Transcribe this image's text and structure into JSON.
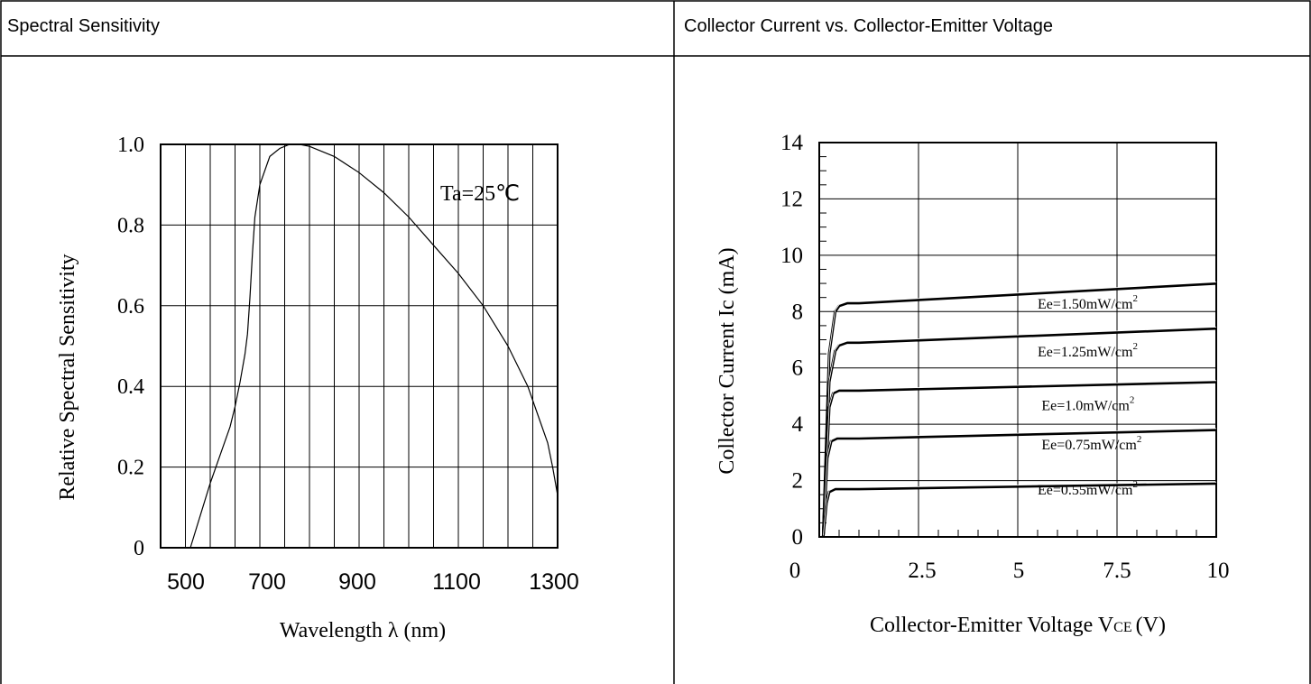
{
  "panels": [
    {
      "title": "Spectral Sensitivity"
    },
    {
      "title": "Collector Current vs. Collector-Emitter Voltage"
    }
  ],
  "chart_data": [
    {
      "type": "line",
      "title": "Spectral Sensitivity",
      "xlabel": "Wavelength λ (nm)",
      "ylabel": "Relative Spectral Sensitivity",
      "xlim": [
        500,
        1300
      ],
      "ylim": [
        0,
        1.0
      ],
      "xticks": [
        500,
        700,
        900,
        1100,
        1300
      ],
      "xtick_labels": [
        "500",
        "700",
        "900",
        "1100",
        "1300"
      ],
      "yticks": [
        0,
        0.2,
        0.4,
        0.6,
        0.8,
        1.0
      ],
      "ytick_labels": [
        "0",
        "0.2",
        "0.4",
        "0.6",
        "0.8",
        "1.0"
      ],
      "grid": true,
      "annotation": "Ta=25℃",
      "series": [
        {
          "x": [
            560,
            580,
            600,
            620,
            640,
            650,
            660,
            670,
            675,
            680,
            685,
            690,
            700,
            720,
            740,
            760,
            780,
            800,
            850,
            900,
            950,
            1000,
            1050,
            1100,
            1150,
            1200,
            1220,
            1240,
            1260,
            1280,
            1290,
            1300
          ],
          "y": [
            0,
            0.08,
            0.16,
            0.23,
            0.3,
            0.35,
            0.41,
            0.48,
            0.53,
            0.62,
            0.73,
            0.82,
            0.9,
            0.97,
            0.99,
            1.0,
            1.0,
            0.995,
            0.97,
            0.93,
            0.88,
            0.82,
            0.75,
            0.68,
            0.6,
            0.5,
            0.45,
            0.4,
            0.33,
            0.26,
            0.2,
            0.13
          ]
        }
      ]
    },
    {
      "type": "line",
      "title": "Collector Current vs. Collector-Emitter Voltage",
      "xlabel": "Collector-Emitter Voltage V",
      "xlabel_sub": "CE",
      "xlabel_unit": "(V)",
      "ylabel": "Collector Current Ic (mA)",
      "xlim": [
        0,
        10
      ],
      "ylim": [
        0,
        14
      ],
      "xticks": [
        0,
        2.5,
        5,
        7.5,
        10
      ],
      "xtick_labels": [
        "0",
        "2.5",
        "5",
        "7.5",
        "10"
      ],
      "yticks": [
        0,
        2,
        4,
        6,
        8,
        10,
        12,
        14
      ],
      "ytick_labels": [
        "0",
        "2",
        "4",
        "6",
        "8",
        "10",
        "12",
        "14"
      ],
      "grid": true,
      "series": [
        {
          "label": "Ee=1.50mW/cm",
          "label_sup": "2",
          "label_x": 5.5,
          "label_y": 8.1,
          "x": [
            0.1,
            0.25,
            0.4,
            0.5,
            0.7,
            1.0,
            10
          ],
          "y": [
            0,
            6.5,
            8.0,
            8.2,
            8.3,
            8.3,
            9.0
          ]
        },
        {
          "label": "Ee=1.25mW/cm",
          "label_sup": "2",
          "label_x": 5.5,
          "label_y": 6.4,
          "x": [
            0.1,
            0.25,
            0.4,
            0.5,
            0.7,
            1.0,
            10
          ],
          "y": [
            0,
            5.5,
            6.6,
            6.8,
            6.9,
            6.9,
            7.4
          ]
        },
        {
          "label": "Ee=1.0mW/cm",
          "label_sup": "2",
          "label_x": 5.6,
          "label_y": 4.5,
          "x": [
            0.1,
            0.25,
            0.35,
            0.5,
            0.7,
            1.0,
            10
          ],
          "y": [
            0,
            4.6,
            5.1,
            5.2,
            5.2,
            5.2,
            5.5
          ]
        },
        {
          "label": "Ee=0.75mW/cm",
          "label_sup": "2",
          "label_x": 5.6,
          "label_y": 3.1,
          "x": [
            0.1,
            0.2,
            0.3,
            0.45,
            0.7,
            1.0,
            10
          ],
          "y": [
            0,
            2.8,
            3.4,
            3.5,
            3.5,
            3.5,
            3.8
          ]
        },
        {
          "label": "Ee=0.55mW/cm",
          "label_sup": "2",
          "label_x": 5.5,
          "label_y": 1.5,
          "x": [
            0.1,
            0.18,
            0.25,
            0.4,
            0.7,
            1.0,
            10
          ],
          "y": [
            0,
            1.2,
            1.6,
            1.7,
            1.7,
            1.7,
            1.9
          ]
        }
      ]
    }
  ]
}
